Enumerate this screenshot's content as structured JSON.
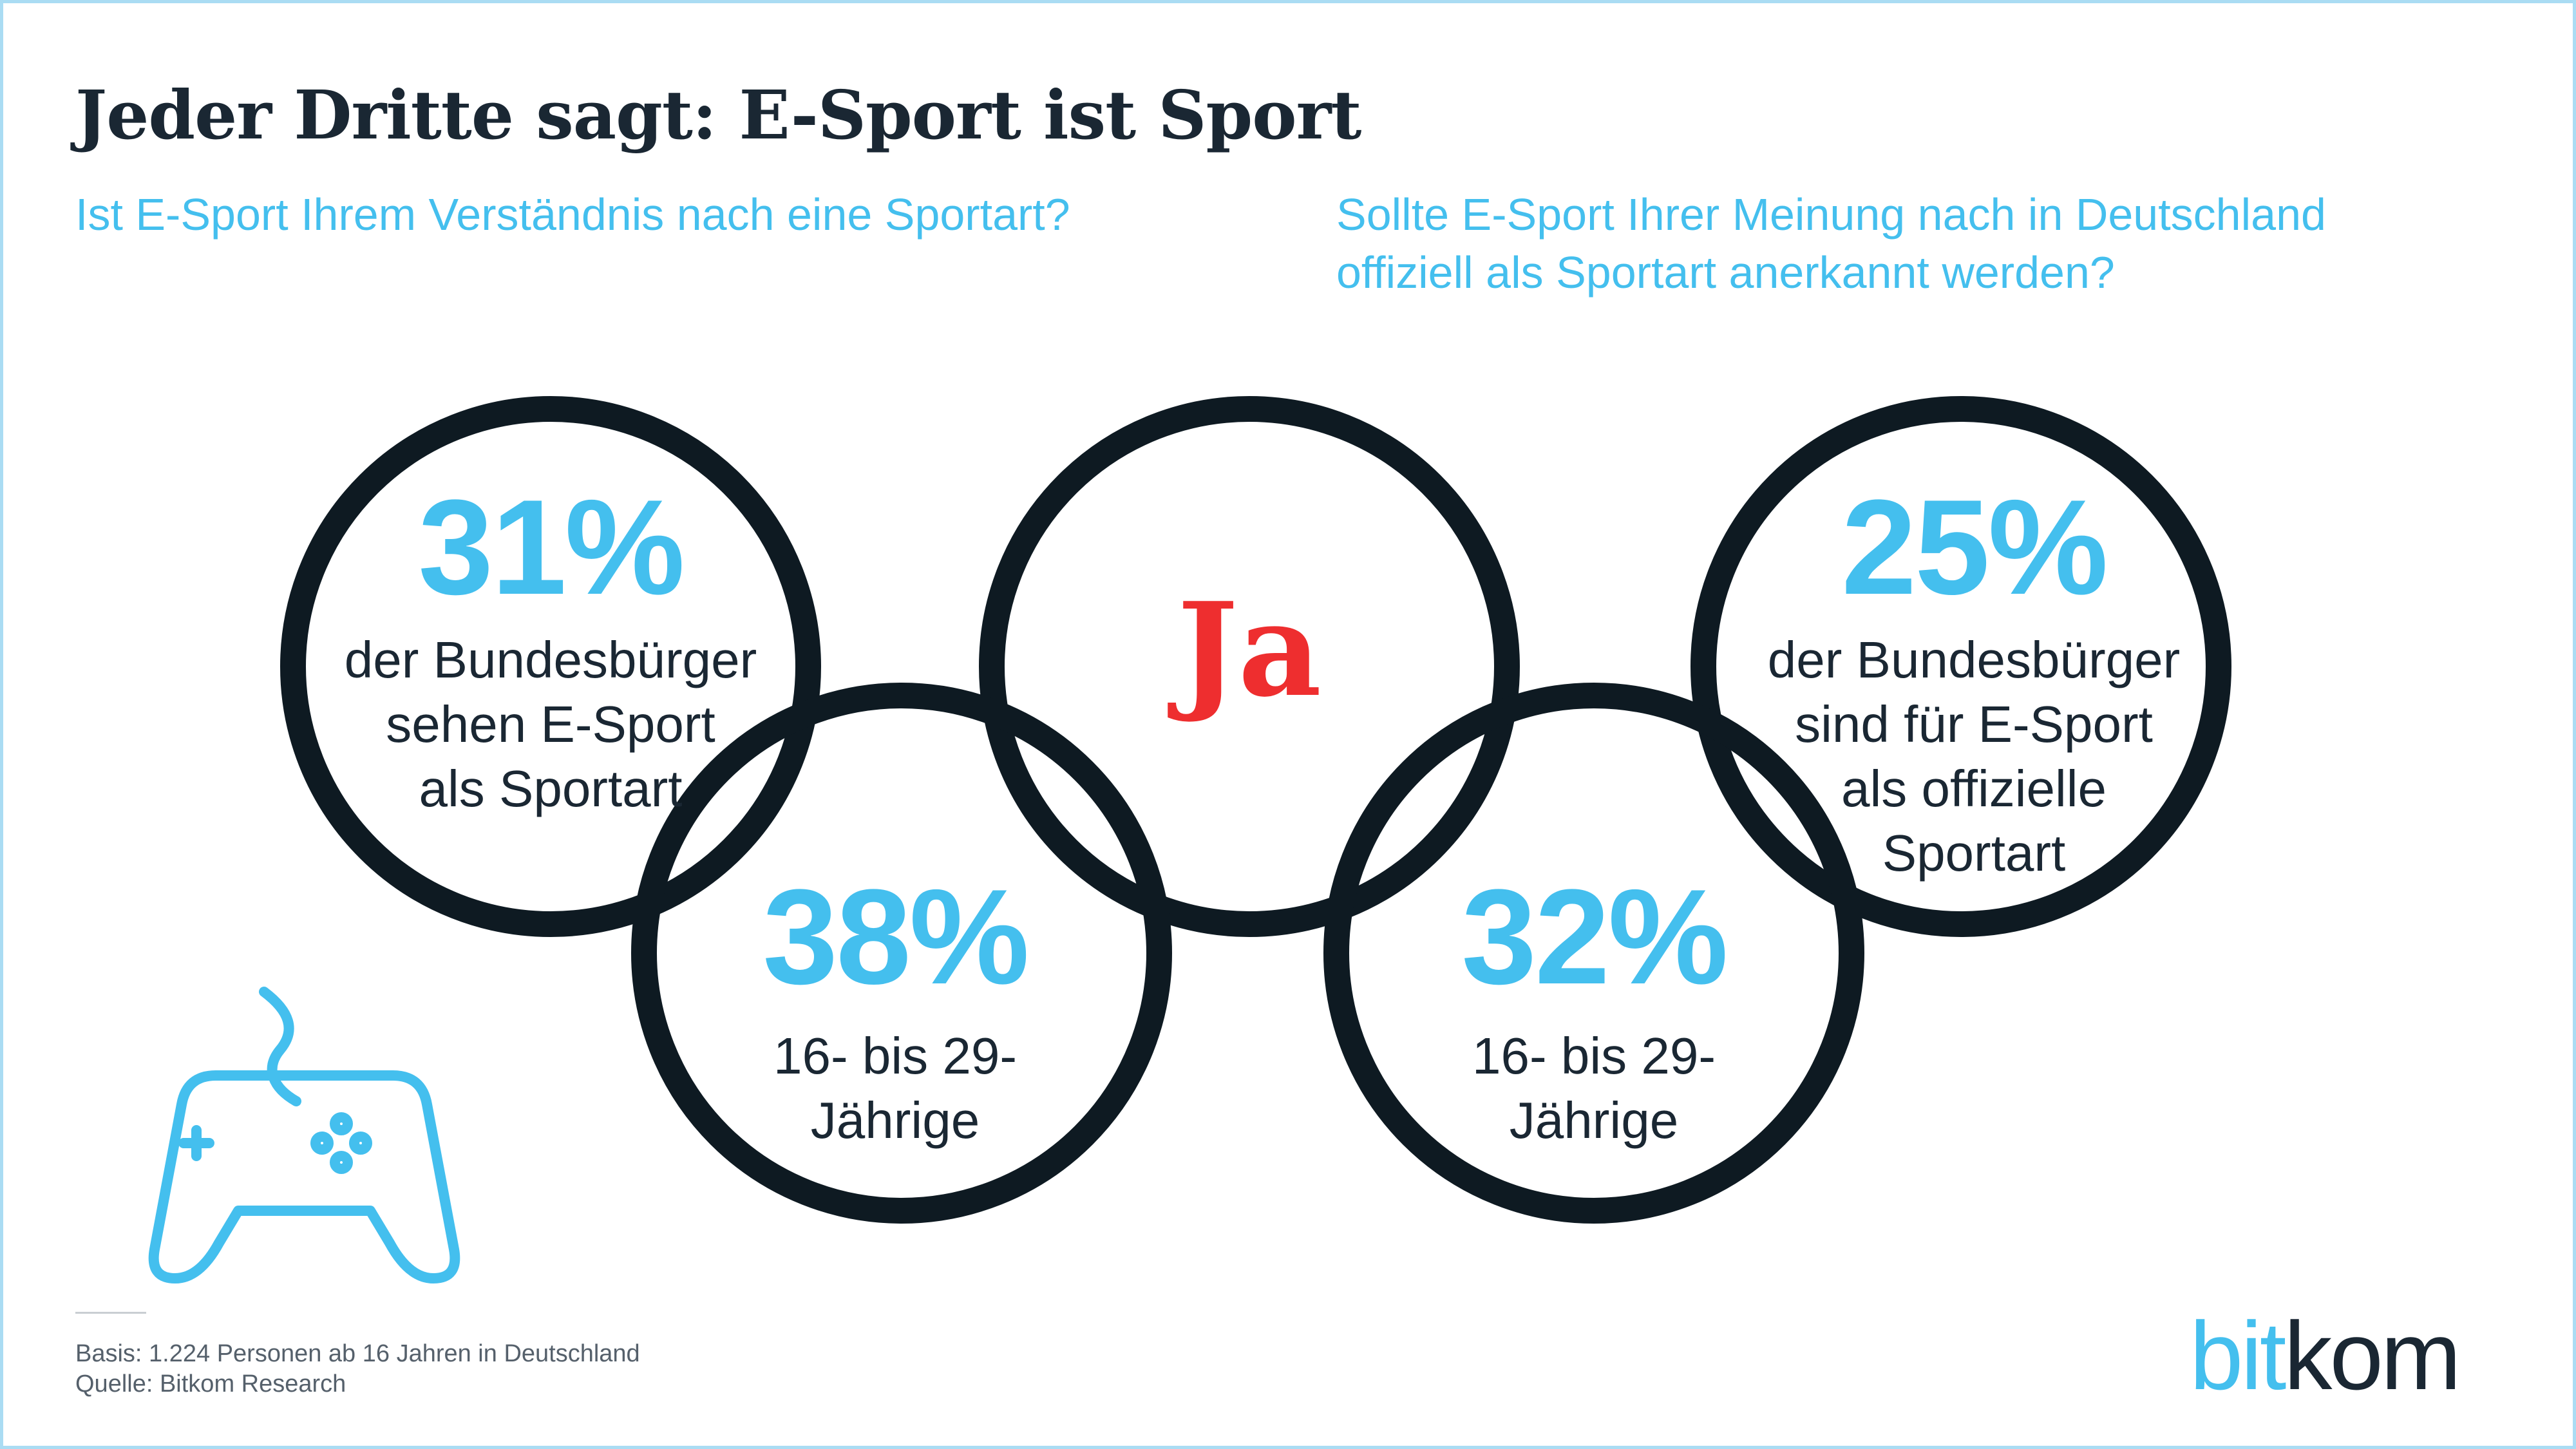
{
  "title": "Jeder Dritte sagt: E-Sport ist Sport",
  "questions": {
    "left": "Ist E-Sport Ihrem Verständnis nach eine Sportart?",
    "right": "Sollte E-Sport Ihrer Meinung nach in Deutschland offiziell als Sportart anerkannt werden?"
  },
  "center_label": "Ja",
  "stats": [
    {
      "value": "31%",
      "desc_lines": [
        "der Bundesbürger",
        "sehen E-Sport",
        "als Sportart"
      ]
    },
    {
      "value": "38%",
      "desc_lines": [
        "16- bis 29-",
        "Jährige"
      ]
    },
    {
      "value": "32%",
      "desc_lines": [
        "16- bis 29-",
        "Jährige"
      ]
    },
    {
      "value": "25%",
      "desc_lines": [
        "der Bundesbürger",
        "sind für E-Sport",
        "als offizielle",
        "Sportart"
      ]
    }
  ],
  "footnote": {
    "basis": "Basis: 1.224 Personen ab 16 Jahren in Deutschland",
    "source": "Quelle: Bitkom Research"
  },
  "logo": {
    "part1": "bit",
    "part2": "kom"
  },
  "colors": {
    "accent": "#44bfee",
    "highlight": "#ee2e2f",
    "dark": "#1a2733",
    "ring": "#0e1a22",
    "border": "#aadcf3"
  },
  "icons": {
    "gamepad": "gamepad-icon"
  }
}
